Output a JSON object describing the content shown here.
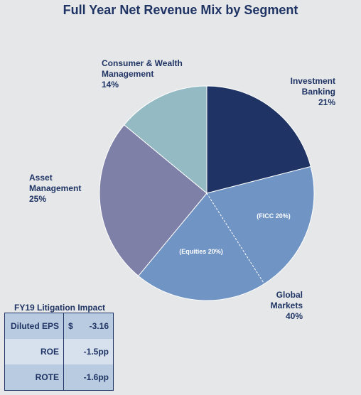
{
  "chart_data": {
    "type": "pie",
    "title": "Full Year Net Revenue Mix by Segment",
    "slices": [
      {
        "label": "Investment Banking",
        "label_lines": [
          "Investment",
          "Banking"
        ],
        "value": 21,
        "value_text": "21%",
        "color": "#1f3464"
      },
      {
        "label": "Global Markets",
        "label_lines": [
          "Global",
          "Markets"
        ],
        "value": 40,
        "value_text": "40%",
        "color": "#7094c4",
        "sub_labels": [
          "(FICC 20%)",
          "(Equities 20%)"
        ]
      },
      {
        "label": "Asset Management",
        "label_lines": [
          "Asset",
          "Management"
        ],
        "value": 25,
        "value_text": "25%",
        "color": "#7f80a8"
      },
      {
        "label": "Consumer & Wealth Management",
        "label_lines": [
          "Consumer & Wealth",
          "Management"
        ],
        "value": 14,
        "value_text": "14%",
        "color": "#94bac3"
      }
    ]
  },
  "litigation": {
    "title": "FY19 Litigation Impact",
    "rows": [
      {
        "metric": "Diluted EPS",
        "currency": "$",
        "value": "-3.16"
      },
      {
        "metric": "ROE",
        "currency": "",
        "value": "-1.5pp"
      },
      {
        "metric": "ROTE",
        "currency": "",
        "value": "-1.6pp"
      }
    ]
  }
}
